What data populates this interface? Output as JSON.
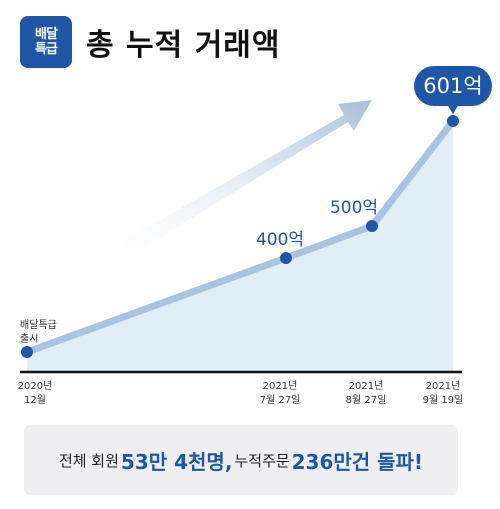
{
  "header": {
    "logo_line1": "배달",
    "logo_line2": "특급",
    "title": "총 누적 거래액"
  },
  "chart_data": {
    "type": "area",
    "title": "총 누적 거래액",
    "unit": "억",
    "x_dates": [
      "2020-12-01",
      "2021-07-27",
      "2021-08-27",
      "2021-09-19"
    ],
    "x_tick_labels": [
      {
        "year": "2020년",
        "day": "12월"
      },
      {
        "year": "2021년",
        "day": "7월 27일"
      },
      {
        "year": "2021년",
        "day": "8월 27일"
      },
      {
        "year": "2021년",
        "day": "9월 19일"
      }
    ],
    "values": [
      0,
      400,
      500,
      601
    ],
    "point_labels": [
      "",
      "400억",
      "500억",
      "601억"
    ],
    "start_annotation": [
      "배달특급",
      "출시"
    ],
    "ylim": [
      0,
      650
    ],
    "colors": {
      "line": "#a9c4e3",
      "fill": "#dfeef7",
      "point": "#1f57a6",
      "axis": "#111111",
      "arrow": "#a6bfdc"
    }
  },
  "summary": {
    "prefix": "전체 회원",
    "members": "53만 4천명,",
    "middle": "누적주문",
    "orders": "236만건 돌파!"
  }
}
